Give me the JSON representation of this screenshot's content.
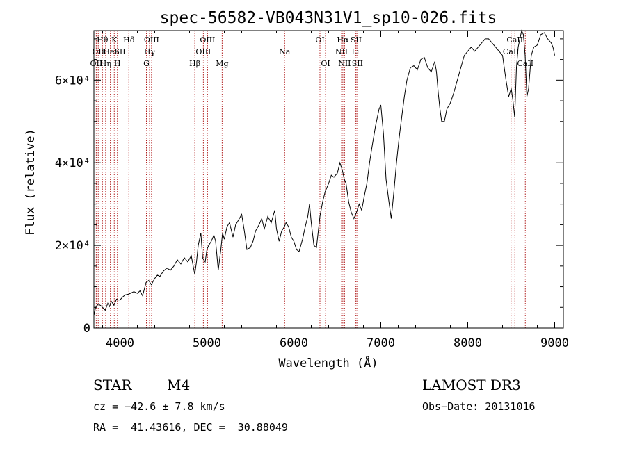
{
  "chart_data": {
    "type": "line",
    "title": "spec-56582-VB043N31V1_sp10-026.fits",
    "xlabel": "Wavelength (Å)",
    "ylabel": "Flux (relative)",
    "xlim": [
      3700,
      9100
    ],
    "ylim": [
      0,
      72000
    ],
    "x_ticks": [
      {
        "value": 4000,
        "label": "4000"
      },
      {
        "value": 5000,
        "label": "5000"
      },
      {
        "value": 6000,
        "label": "6000"
      },
      {
        "value": 7000,
        "label": "7000"
      },
      {
        "value": 8000,
        "label": "8000"
      },
      {
        "value": 9000,
        "label": "9000"
      }
    ],
    "y_ticks": [
      {
        "value": 0,
        "label": "0"
      },
      {
        "value": 20000,
        "label": "2×10⁴"
      },
      {
        "value": 40000,
        "label": "4×10⁴"
      },
      {
        "value": 60000,
        "label": "6×10⁴"
      }
    ],
    "series": [
      {
        "name": "spectrum",
        "x": [
          3700,
          3720,
          3750,
          3780,
          3800,
          3830,
          3860,
          3880,
          3900,
          3930,
          3960,
          3980,
          4000,
          4030,
          4060,
          4100,
          4130,
          4160,
          4200,
          4230,
          4260,
          4300,
          4330,
          4360,
          4400,
          4430,
          4460,
          4500,
          4540,
          4580,
          4620,
          4660,
          4700,
          4740,
          4780,
          4820,
          4860,
          4880,
          4900,
          4930,
          4950,
          4980,
          5000,
          5020,
          5050,
          5080,
          5100,
          5130,
          5160,
          5180,
          5200,
          5230,
          5260,
          5300,
          5330,
          5360,
          5400,
          5430,
          5460,
          5500,
          5530,
          5560,
          5600,
          5630,
          5660,
          5700,
          5740,
          5780,
          5800,
          5830,
          5860,
          5890,
          5910,
          5940,
          5970,
          6000,
          6030,
          6060,
          6100,
          6130,
          6160,
          6180,
          6200,
          6230,
          6260,
          6300,
          6330,
          6360,
          6400,
          6430,
          6460,
          6500,
          6530,
          6560,
          6580,
          6600,
          6630,
          6660,
          6690,
          6720,
          6750,
          6780,
          6810,
          6840,
          6870,
          6900,
          6940,
          6980,
          7000,
          7030,
          7060,
          7090,
          7120,
          7150,
          7180,
          7210,
          7240,
          7270,
          7300,
          7340,
          7380,
          7420,
          7460,
          7500,
          7540,
          7580,
          7620,
          7640,
          7660,
          7680,
          7700,
          7730,
          7760,
          7800,
          7840,
          7880,
          7920,
          7960,
          8000,
          8040,
          8080,
          8120,
          8160,
          8200,
          8240,
          8280,
          8320,
          8360,
          8400,
          8440,
          8470,
          8500,
          8520,
          8540,
          8560,
          8580,
          8600,
          8620,
          8640,
          8660,
          8680,
          8700,
          8730,
          8760,
          8800,
          8840,
          8880,
          8920,
          8960,
          8980,
          8990,
          9000
        ],
        "y": [
          3000,
          5000,
          5800,
          5400,
          5000,
          4300,
          6000,
          5200,
          6500,
          5500,
          7000,
          6800,
          6800,
          7500,
          8000,
          8200,
          8500,
          8800,
          8400,
          9000,
          7800,
          11000,
          11500,
          10500,
          12000,
          12800,
          12500,
          13800,
          14500,
          14000,
          15000,
          16500,
          15500,
          17000,
          16000,
          17500,
          13000,
          16000,
          20000,
          23000,
          17000,
          16000,
          19000,
          20000,
          21000,
          22500,
          21000,
          14000,
          19000,
          23000,
          21500,
          24500,
          25500,
          22000,
          25000,
          26000,
          27500,
          23500,
          19000,
          19500,
          21000,
          23500,
          25000,
          26500,
          24000,
          27000,
          25500,
          28500,
          24000,
          21000,
          23500,
          24500,
          25500,
          24500,
          22000,
          21000,
          19000,
          18500,
          21500,
          24500,
          27000,
          30000,
          25500,
          20000,
          19500,
          27000,
          30500,
          33000,
          35000,
          37000,
          36500,
          37500,
          40000,
          38000,
          36000,
          35000,
          30500,
          28000,
          26500,
          28000,
          30000,
          28500,
          32000,
          35000,
          40000,
          44000,
          49000,
          53000,
          54000,
          47000,
          36000,
          31000,
          26500,
          33000,
          40000,
          46000,
          51000,
          56000,
          60000,
          63000,
          63500,
          62500,
          65000,
          65500,
          63000,
          62000,
          64500,
          62000,
          57000,
          53000,
          50000,
          50000,
          53000,
          54500,
          57000,
          60000,
          63000,
          66000,
          67000,
          68000,
          67000,
          68000,
          69000,
          70000,
          70000,
          69000,
          68000,
          67000,
          66000,
          60000,
          56000,
          58000,
          55000,
          51000,
          63000,
          68000,
          70000,
          72000,
          71000,
          66000,
          56000,
          58000,
          66000,
          68000,
          68500,
          71000,
          71500,
          70000,
          69000,
          68000,
          67000,
          66000
        ]
      }
    ],
    "absorption_lines": [
      {
        "wavelength": 3727,
        "label": "OII",
        "row": 2
      },
      {
        "wavelength": 3750,
        "label": "OII",
        "row": 1
      },
      {
        "wavelength": 3798,
        "label": "Hθ",
        "row": 0
      },
      {
        "wavelength": 3835,
        "label": "Hη",
        "row": 2
      },
      {
        "wavelength": 3889,
        "label": "HeI",
        "row": 1
      },
      {
        "wavelength": 3934,
        "label": "K",
        "row": 0
      },
      {
        "wavelength": 3970,
        "label": "H",
        "row": 2
      },
      {
        "wavelength": 4000,
        "label": "SII",
        "row": 1
      },
      {
        "wavelength": 4102,
        "label": "Hδ",
        "row": 0
      },
      {
        "wavelength": 4304,
        "label": "G",
        "row": 2
      },
      {
        "wavelength": 4340,
        "label": "Hγ",
        "row": 1
      },
      {
        "wavelength": 4363,
        "label": "OIII",
        "row": 0
      },
      {
        "wavelength": 4861,
        "label": "Hβ",
        "row": 2
      },
      {
        "wavelength": 4959,
        "label": "OIII",
        "row": 1
      },
      {
        "wavelength": 5007,
        "label": "OIII",
        "row": 0
      },
      {
        "wavelength": 5175,
        "label": "Mg",
        "row": 2
      },
      {
        "wavelength": 5894,
        "label": "Na",
        "row": 1
      },
      {
        "wavelength": 6300,
        "label": "OI",
        "row": 0
      },
      {
        "wavelength": 6364,
        "label": "OI",
        "row": 2
      },
      {
        "wavelength": 6548,
        "label": "NII",
        "row": 1
      },
      {
        "wavelength": 6563,
        "label": "Hα",
        "row": 0
      },
      {
        "wavelength": 6583,
        "label": "NII",
        "row": 2
      },
      {
        "wavelength": 6707,
        "label": "Li",
        "row": 1
      },
      {
        "wavelength": 6716,
        "label": "SII",
        "row": 0
      },
      {
        "wavelength": 6731,
        "label": "SII",
        "row": 2
      },
      {
        "wavelength": 8498,
        "label": "CaII",
        "row": 1
      },
      {
        "wavelength": 8542,
        "label": "CaII",
        "row": 0
      },
      {
        "wavelength": 8662,
        "label": "CaII",
        "row": 2
      }
    ],
    "grid": false
  },
  "info": {
    "object_class": "STAR",
    "subclass": "M4",
    "survey": "LAMOST DR3",
    "cz": "cz = −42.6 ± 7.8 km/s",
    "obs_date": "Obs−Date: 20131016",
    "coords": "RA =  41.43616, DEC =  30.88049"
  },
  "colors": {
    "spectrum": "#000000",
    "line_markers": "#b22222",
    "axes": "#000000"
  }
}
